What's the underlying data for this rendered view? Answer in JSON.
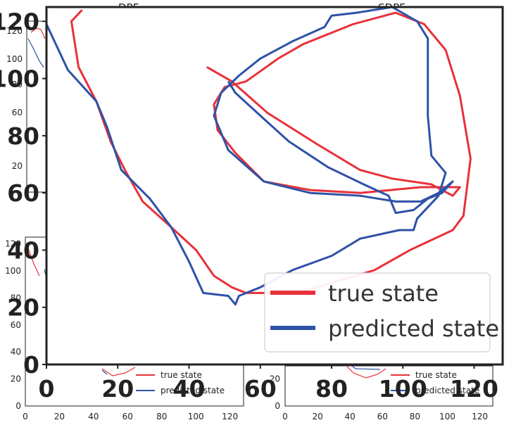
{
  "background_panels": [
    {
      "title": "DPF",
      "xticks": [
        0,
        20,
        40,
        60,
        80,
        100,
        120
      ],
      "yticks": [
        0,
        20,
        40,
        60,
        80,
        100,
        120
      ]
    },
    {
      "title": "SDPF",
      "xticks": [
        0,
        20,
        40,
        60,
        80,
        100,
        120
      ],
      "yticks": [
        0,
        20,
        40,
        60,
        80,
        100,
        120
      ]
    },
    {
      "legend": [
        "true state",
        "predicted state"
      ]
    },
    {
      "legend": [
        "true state",
        "predicted state"
      ]
    }
  ],
  "chart_data": {
    "type": "line",
    "title": "",
    "xlabel": "",
    "ylabel": "",
    "xlim": [
      0,
      128
    ],
    "ylim": [
      0,
      125
    ],
    "xticks": [
      0,
      20,
      40,
      60,
      80,
      100,
      120
    ],
    "yticks": [
      0,
      20,
      40,
      60,
      80,
      100,
      120
    ],
    "grid": false,
    "legend_position": "bottom-right",
    "series": [
      {
        "name": "true state",
        "color": "#e8313a",
        "points": [
          [
            10,
            124
          ],
          [
            7,
            120
          ],
          [
            9,
            104
          ],
          [
            14,
            92
          ],
          [
            18,
            78
          ],
          [
            22,
            68
          ],
          [
            27,
            57
          ],
          [
            35,
            48
          ],
          [
            42,
            40
          ],
          [
            47,
            31
          ],
          [
            52,
            27
          ],
          [
            56,
            25
          ],
          [
            70,
            25
          ],
          [
            84,
            30
          ],
          [
            92,
            33
          ],
          [
            102,
            40
          ],
          [
            114,
            47
          ],
          [
            117,
            52
          ],
          [
            119,
            72
          ],
          [
            116,
            94
          ],
          [
            112,
            110
          ],
          [
            106,
            119
          ],
          [
            98,
            123
          ],
          [
            86,
            119
          ],
          [
            72,
            112
          ],
          [
            65,
            107
          ],
          [
            56,
            99
          ],
          [
            50,
            97
          ],
          [
            47,
            91
          ],
          [
            48,
            82
          ],
          [
            53,
            74
          ],
          [
            61,
            64
          ],
          [
            74,
            61
          ],
          [
            88,
            60
          ],
          [
            105,
            62
          ],
          [
            112,
            62
          ],
          [
            116,
            62
          ],
          [
            114,
            59
          ],
          [
            108,
            63
          ],
          [
            97,
            65
          ],
          [
            88,
            68
          ],
          [
            76,
            77
          ],
          [
            62,
            88
          ],
          [
            52,
            99
          ],
          [
            45,
            104
          ]
        ]
      },
      {
        "name": "predicted state",
        "color": "#2e52a7",
        "points": [
          [
            0,
            119
          ],
          [
            6,
            103
          ],
          [
            14,
            92
          ],
          [
            17,
            83
          ],
          [
            21,
            68
          ],
          [
            29,
            58
          ],
          [
            35,
            48
          ],
          [
            40,
            36
          ],
          [
            44,
            25
          ],
          [
            51,
            24
          ],
          [
            53,
            21
          ],
          [
            54,
            24
          ],
          [
            60,
            27
          ],
          [
            69,
            33
          ],
          [
            80,
            38
          ],
          [
            88,
            44
          ],
          [
            99,
            47
          ],
          [
            103,
            47
          ],
          [
            104,
            51
          ],
          [
            110,
            59
          ],
          [
            112,
            67
          ],
          [
            108,
            73
          ],
          [
            107,
            87
          ],
          [
            107,
            114
          ],
          [
            104,
            120
          ],
          [
            97,
            125
          ],
          [
            87,
            123
          ],
          [
            80,
            122
          ],
          [
            78,
            118
          ],
          [
            69,
            113
          ],
          [
            60,
            107
          ],
          [
            54,
            101
          ],
          [
            49,
            95
          ],
          [
            47,
            87
          ],
          [
            51,
            75
          ],
          [
            61,
            64
          ],
          [
            74,
            60
          ],
          [
            88,
            59
          ],
          [
            98,
            57
          ],
          [
            105,
            57
          ],
          [
            110,
            60
          ],
          [
            114,
            64
          ],
          [
            111,
            60
          ],
          [
            107,
            58
          ],
          [
            103,
            54
          ],
          [
            98,
            53
          ],
          [
            96,
            59
          ],
          [
            89,
            63
          ],
          [
            79,
            69
          ],
          [
            68,
            78
          ],
          [
            60,
            87
          ],
          [
            53,
            95
          ],
          [
            51,
            99
          ]
        ]
      }
    ]
  }
}
